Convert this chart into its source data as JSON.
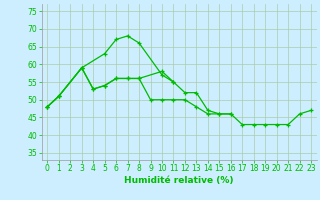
{
  "xlabel": "Humidité relative (%)",
  "background_color": "#cceeff",
  "grid_color": "#aaccaa",
  "line_color": "#00bb00",
  "xlim": [
    -0.5,
    23.5
  ],
  "ylim": [
    33,
    77
  ],
  "yticks": [
    35,
    40,
    45,
    50,
    55,
    60,
    65,
    70,
    75
  ],
  "xticks": [
    0,
    1,
    2,
    3,
    4,
    5,
    6,
    7,
    8,
    9,
    10,
    11,
    12,
    13,
    14,
    15,
    16,
    17,
    18,
    19,
    20,
    21,
    22,
    23
  ],
  "x_series1": [
    0,
    1,
    3,
    5,
    6,
    7,
    8,
    10,
    11
  ],
  "y_series1": [
    48,
    51,
    59,
    63,
    67,
    68,
    66,
    57,
    55
  ],
  "x_series2": [
    0,
    1,
    3,
    4,
    5,
    6,
    7,
    8,
    10,
    11,
    12,
    13,
    14,
    15,
    16
  ],
  "y_series2": [
    48,
    51,
    59,
    53,
    54,
    56,
    56,
    56,
    58,
    55,
    52,
    52,
    47,
    46,
    46
  ],
  "x_series3": [
    0,
    1,
    3,
    4,
    5,
    6,
    7,
    8,
    9,
    10,
    11,
    12,
    13,
    14,
    15,
    16,
    17,
    18,
    19,
    20,
    21,
    22,
    23
  ],
  "y_series3": [
    48,
    51,
    59,
    53,
    54,
    56,
    56,
    56,
    50,
    50,
    50,
    50,
    48,
    46,
    46,
    46,
    43,
    43,
    43,
    43,
    43,
    46,
    47
  ],
  "markersize": 3,
  "linewidth": 0.9
}
